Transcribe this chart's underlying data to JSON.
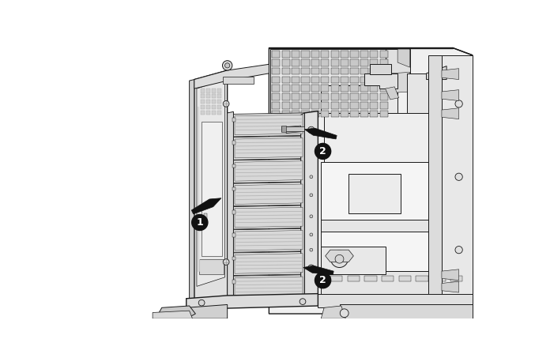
{
  "background_color": "#ffffff",
  "fig_width": 6.77,
  "fig_height": 4.53,
  "dpi": 100,
  "callout_1": "1",
  "callout_2": "2",
  "line_color": "#1a1a1a",
  "arrow_color": "#111111",
  "circle_bg": "#111111",
  "circle_text_color": "#ffffff",
  "fill_white": "#ffffff",
  "fill_light": "#eeeeee",
  "fill_gray": "#d8d8d8",
  "fill_med": "#c0c0c0",
  "fill_dark": "#a0a0a0",
  "fill_slot": "#b8b8b8",
  "slot_line": "#888888"
}
